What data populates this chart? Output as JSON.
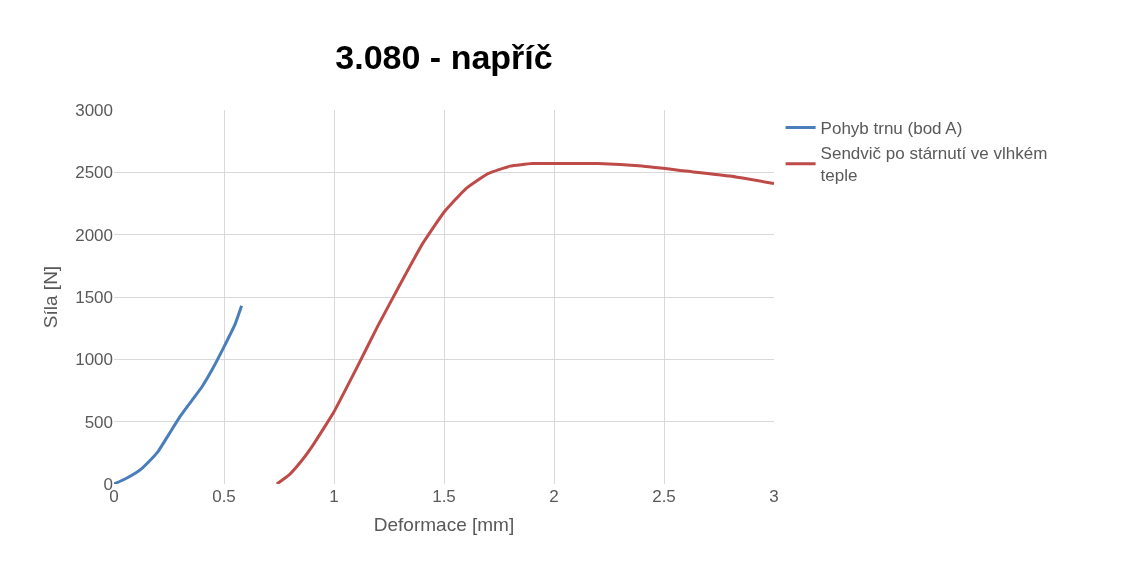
{
  "chart_data": {
    "type": "line",
    "title": "3.080 - napříč",
    "xlabel": "Deformace [mm]",
    "ylabel": "Síla [N]",
    "xlim": [
      0,
      3
    ],
    "xticks": [
      0,
      0.5,
      1,
      1.5,
      2,
      2.5,
      3
    ],
    "ylim": [
      0,
      3000
    ],
    "yticks": [
      0,
      500,
      1000,
      1500,
      2000,
      2500,
      3000
    ],
    "grid": true,
    "legend": "right",
    "line_style": "solid",
    "marker": "none",
    "series": [
      {
        "name": "Pohyb trnu (bod A)",
        "color": "#4a7ebb",
        "x": [
          0,
          0.05,
          0.1,
          0.13,
          0.17,
          0.2,
          0.25,
          0.3,
          0.35,
          0.4,
          0.45,
          0.5,
          0.55,
          0.58
        ],
        "values": [
          0,
          40,
          90,
          130,
          200,
          260,
          400,
          540,
          660,
          780,
          930,
          1100,
          1280,
          1430
        ]
      },
      {
        "name": "Sendvič po stárnutí ve vlhkém teple",
        "color": "#be4b48",
        "x": [
          0.74,
          0.8,
          0.85,
          0.9,
          1.0,
          1.1,
          1.2,
          1.3,
          1.4,
          1.5,
          1.6,
          1.7,
          1.8,
          1.9,
          2.0,
          2.2,
          2.4,
          2.6,
          2.8,
          3.0
        ],
        "values": [
          0,
          80,
          180,
          300,
          580,
          920,
          1270,
          1600,
          1920,
          2180,
          2370,
          2490,
          2550,
          2570,
          2570,
          2570,
          2550,
          2510,
          2470,
          2410
        ]
      }
    ]
  }
}
